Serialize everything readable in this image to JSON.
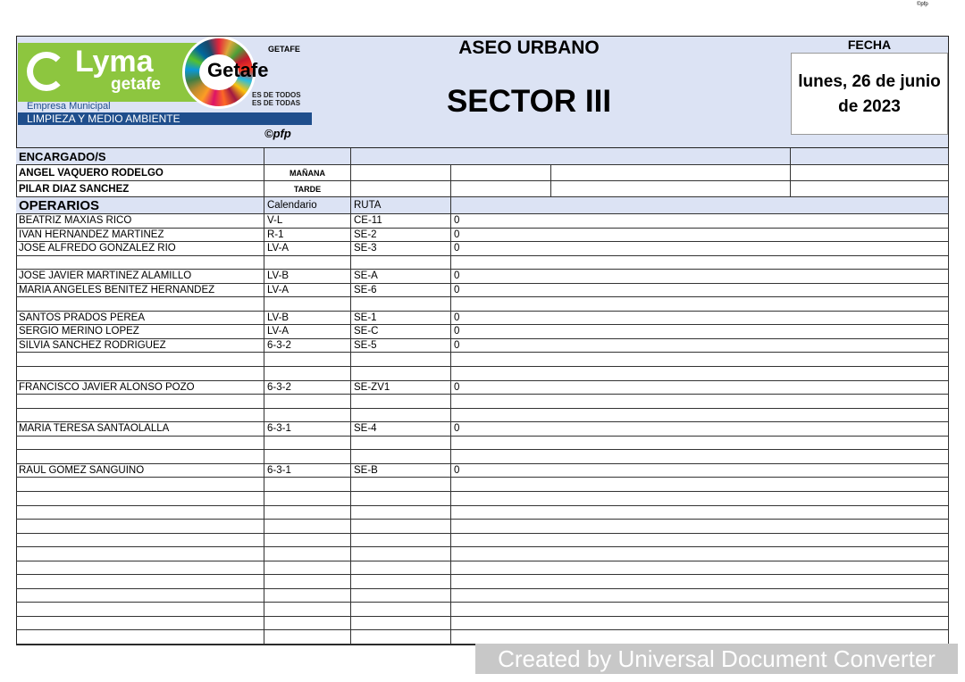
{
  "corner_mark": "©pfp",
  "logo": {
    "brand": "Lyma getafe",
    "city": "Getafe",
    "ayto": "GETAFE",
    "slogan1": "ES DE TODOS",
    "slogan2": "ES DE TODAS",
    "company": "Empresa Municipal",
    "division": "LIMPIEZA Y MEDIO AMBIENTE",
    "copyright": "©pfp"
  },
  "header": {
    "title": "ASEO URBANO",
    "sector": "SECTOR III",
    "fecha_label": "FECHA",
    "fecha_line1": "lunes, 26 de junio",
    "fecha_line2": "de 2023"
  },
  "encargados": {
    "label": "ENCARGADO/S",
    "rows": [
      {
        "name": "ANGEL VAQUERO RODELGO",
        "turno": "MAÑANA"
      },
      {
        "name": "PILAR DIAZ SANCHEZ",
        "turno": "TARDE"
      }
    ]
  },
  "operarios": {
    "label": "OPERARIOS",
    "col_calendario": "Calendario",
    "col_ruta": "RUTA",
    "rows": [
      [
        "BEATRIZ MAXIAS RICO",
        "V-L",
        "CE-11",
        "0"
      ],
      [
        "IVAN HERNANDEZ MARTINEZ",
        "R-1",
        "SE-2",
        "0"
      ],
      [
        "JOSE ALFREDO GONZALEZ RIO",
        "LV-A",
        "SE-3",
        "0"
      ],
      [
        "",
        "",
        "",
        ""
      ],
      [
        "JOSE JAVIER MARTINEZ ALAMILLO",
        "LV-B",
        "SE-A",
        "0"
      ],
      [
        "MARIA ANGELES BENITEZ HERNANDEZ",
        "LV-A",
        "SE-6",
        "0"
      ],
      [
        "",
        "",
        "",
        ""
      ],
      [
        "SANTOS PRADOS PEREA",
        "LV-B",
        "SE-1",
        "0"
      ],
      [
        "SERGIO MERINO LOPEZ",
        "LV-A",
        "SE-C",
        "0"
      ],
      [
        "SILVIA SANCHEZ RODRIGUEZ",
        "6-3-2",
        "SE-5",
        "0"
      ],
      [
        "",
        "",
        "",
        ""
      ],
      [
        "",
        "",
        "",
        ""
      ],
      [
        "FRANCISCO JAVIER ALONSO POZO",
        "6-3-2",
        "SE-ZV1",
        "0"
      ],
      [
        "",
        "",
        "",
        ""
      ],
      [
        "",
        "",
        "",
        ""
      ],
      [
        "MARIA TERESA SANTAOLALLA",
        "6-3-1",
        "SE-4",
        "0"
      ],
      [
        "",
        "",
        "",
        ""
      ],
      [
        "",
        "",
        "",
        ""
      ],
      [
        "RAUL GOMEZ SANGUINO",
        "6-3-1",
        "SE-B",
        "0"
      ],
      [
        "",
        "",
        "",
        ""
      ],
      [
        "",
        "",
        "",
        ""
      ],
      [
        "",
        "",
        "",
        ""
      ],
      [
        "",
        "",
        "",
        ""
      ],
      [
        "",
        "",
        "",
        ""
      ],
      [
        "",
        "",
        "",
        ""
      ],
      [
        "",
        "",
        "",
        ""
      ],
      [
        "",
        "",
        "",
        ""
      ],
      [
        "",
        "",
        "",
        ""
      ],
      [
        "",
        "",
        "",
        ""
      ],
      [
        "",
        "",
        "",
        ""
      ],
      [
        "",
        "",
        "",
        ""
      ]
    ]
  },
  "watermark": "Created by Universal Document Converter",
  "colors": {
    "header_bg": "#dce3f4",
    "lyma_green": "#8dc63f",
    "division_blue": "#1f4e8c"
  }
}
